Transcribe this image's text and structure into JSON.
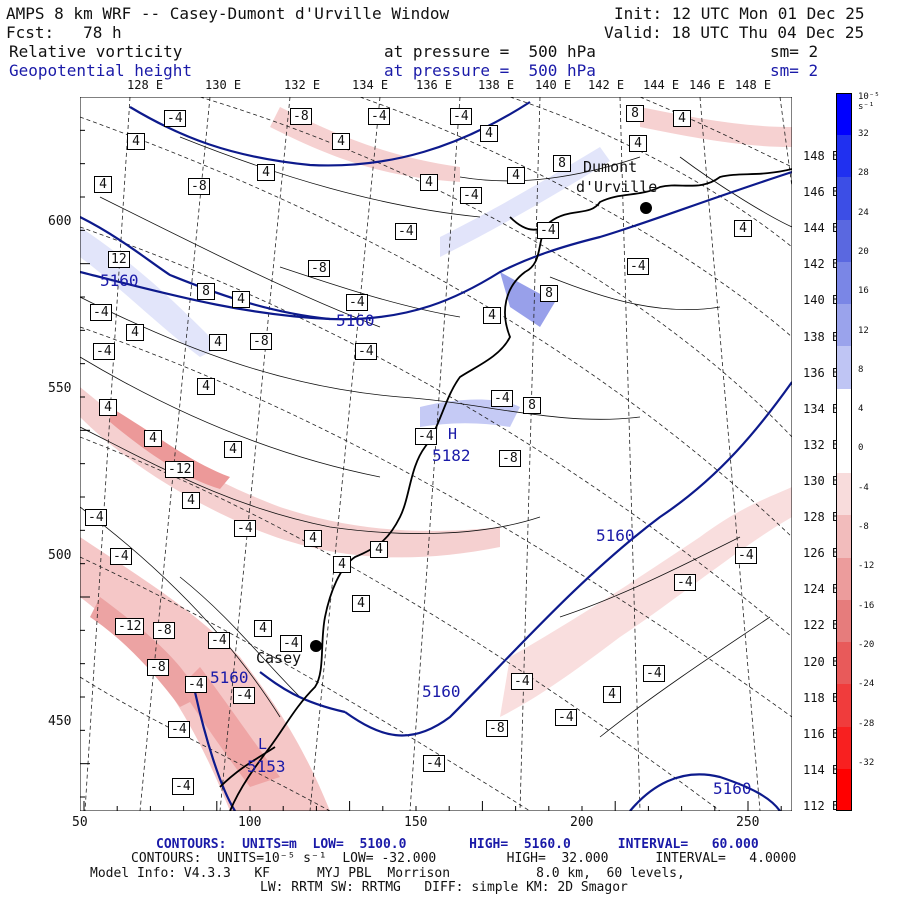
{
  "header": {
    "title": "AMPS 8 km WRF -- Casey-Dumont d'Urville Window",
    "init": "Init: 12 UTC Mon 01 Dec 25",
    "fcst": "Fcst:   78 h",
    "valid": "Valid: 18 UTC Thu 04 Dec 25",
    "field1_name": "Relative vorticity",
    "field1_level": "at pressure =  500 hPa",
    "field1_sm": "sm= 2",
    "field2_name": "Geopotential height",
    "field2_level": "at pressure =  500 hPa",
    "field2_sm": "sm= 2"
  },
  "map": {
    "top_lon_labels": [
      "128 E",
      "130 E",
      "132 E",
      "134 E",
      "136 E",
      "138 E",
      "140 E",
      "142 E",
      "144 E",
      "146 E",
      "148 E"
    ],
    "right_lon_labels": [
      "148 E",
      "146 E",
      "144 E",
      "142 E",
      "140 E",
      "138 E",
      "136 E",
      "134 E",
      "132 E",
      "130 E",
      "128 E",
      "126 E",
      "124 E",
      "122 E",
      "120 E",
      "118 E",
      "116 E",
      "114 E",
      "112 E"
    ],
    "x_ticks": [
      "50",
      "100",
      "150",
      "200",
      "250"
    ],
    "y_ticks": [
      "600",
      "550",
      "500",
      "450"
    ],
    "stations": [
      {
        "name_line1": "Dumont",
        "name_line2": "d'Urville"
      },
      {
        "name_line1": "Casey",
        "name_line2": ""
      }
    ],
    "height_labels": [
      "5160",
      "5160",
      "5182",
      "5160",
      "5160",
      "5160",
      "5160",
      "5153"
    ],
    "low_high_marks": [
      "H",
      "L"
    ],
    "vort_labels": [
      "-4",
      "-8",
      "-4",
      "-4",
      "4",
      "4",
      "4",
      "8",
      "4",
      "4",
      "8",
      "4",
      "-4",
      "4",
      "4",
      "4",
      "-8",
      "-4",
      "-4",
      "4",
      "12",
      "-4",
      "-8",
      "8",
      "4",
      "-4",
      "-4",
      "4",
      "8",
      "4",
      "4",
      "-8",
      "-4",
      "-4",
      "4",
      "4",
      "-4",
      "8",
      "4",
      "-12",
      "4",
      "-4",
      "-8",
      "4",
      "-4",
      "-4",
      "4",
      "4",
      "4",
      "-4",
      "4",
      "-12",
      "-8",
      "-4",
      "4",
      "-4",
      "-8",
      "-4",
      "-4",
      "-4",
      "-4",
      "-8",
      "-4",
      "4",
      "-4",
      "-4",
      "-4",
      "-4",
      "-4"
    ],
    "colors": {
      "height_contour": "#0d1a8c",
      "vort_contour": "#111111",
      "coast": "#000000",
      "grid": "#222222"
    }
  },
  "colorbar": {
    "unit_label": "10⁻⁵ s⁻¹",
    "tick_labels": [
      "32",
      "28",
      "24",
      "20",
      "16",
      "12",
      "8",
      "4",
      "0",
      "-4",
      "-8",
      "-12",
      "-16",
      "-20",
      "-24",
      "-28",
      "-32"
    ],
    "colors": [
      "#0000ff",
      "#2030f0",
      "#3c4ee6",
      "#5a68e0",
      "#7a86e6",
      "#9aa3ec",
      "#bfc5f4",
      "#ffffff",
      "#ffffff",
      "#f8dcdc",
      "#f2bcbc",
      "#ec9c9c",
      "#e67c7c",
      "#e85a5a",
      "#f03c3c",
      "#f82020",
      "#ff0000"
    ]
  },
  "footer": {
    "line1": "CONTOURS:  UNITS=m  LOW=  5100.0        HIGH=  5160.0      INTERVAL=   60.000",
    "line2": "CONTOURS:  UNITS=10⁻⁵ s⁻¹  LOW= -32.000         HIGH=  32.000      INTERVAL=   4.0000",
    "line3": "Model Info: V4.3.3   KF      MYJ PBL  Morrison           8.0 km,  60 levels,",
    "line4": "LW: RRTM SW: RRTMG   DIFF: simple KM: 2D Smagor"
  }
}
